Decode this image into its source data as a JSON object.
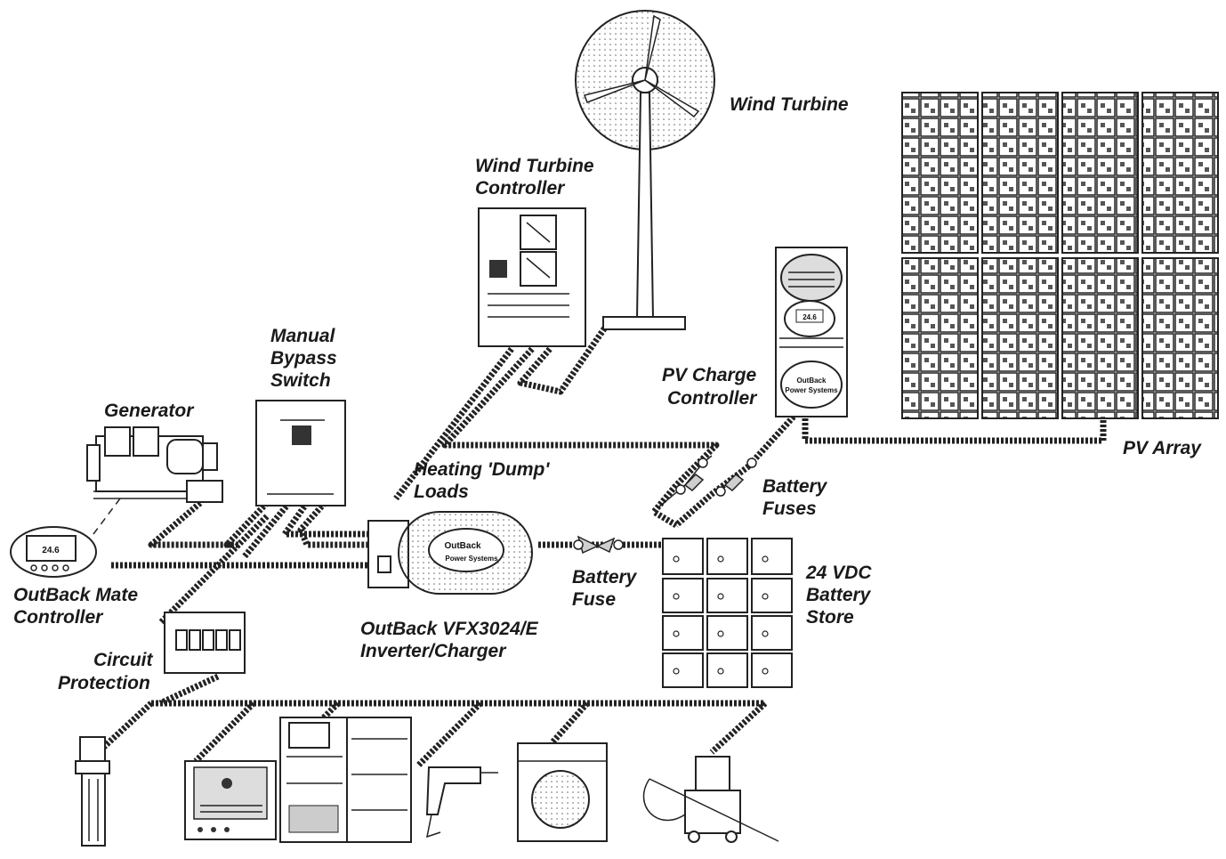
{
  "labels": {
    "wind_turbine": "Wind Turbine",
    "wind_turbine_controller_line1": "Wind Turbine",
    "wind_turbine_controller_line2": "Controller",
    "manual_bypass_line1": "Manual",
    "manual_bypass_line2": "Bypass",
    "manual_bypass_line3": "Switch",
    "generator": "Generator",
    "pv_charge_controller_line1": "PV Charge",
    "pv_charge_controller_line2": "Controller",
    "pv_array": "PV Array",
    "heating_dump_line1": "Heating 'Dump'",
    "heating_dump_line2": "Loads",
    "battery_fuses_line1": "Battery",
    "battery_fuses_line2": "Fuses",
    "battery_fuse_line1": "Battery",
    "battery_fuse_line2": "Fuse",
    "battery_store_line1": "24 VDC",
    "battery_store_line2": "Battery",
    "battery_store_line3": "Store",
    "mate_controller_line1": "OutBack Mate",
    "mate_controller_line2": "Controller",
    "inverter_line1": "OutBack VFX3024/E",
    "inverter_line2": "Inverter/Charger",
    "circuit_protection_line1": "Circuit",
    "circuit_protection_line2": "Protection"
  },
  "device_text": {
    "mate_display": "24.6",
    "pv_controller_display": "24.6",
    "pv_controller_brand": "OutBack",
    "pv_controller_brand_sub": "Power Systems",
    "inverter_brand": "OutBack",
    "inverter_brand_sub": "Power Systems"
  },
  "colors": {
    "line": "#222222",
    "background": "#ffffff"
  }
}
